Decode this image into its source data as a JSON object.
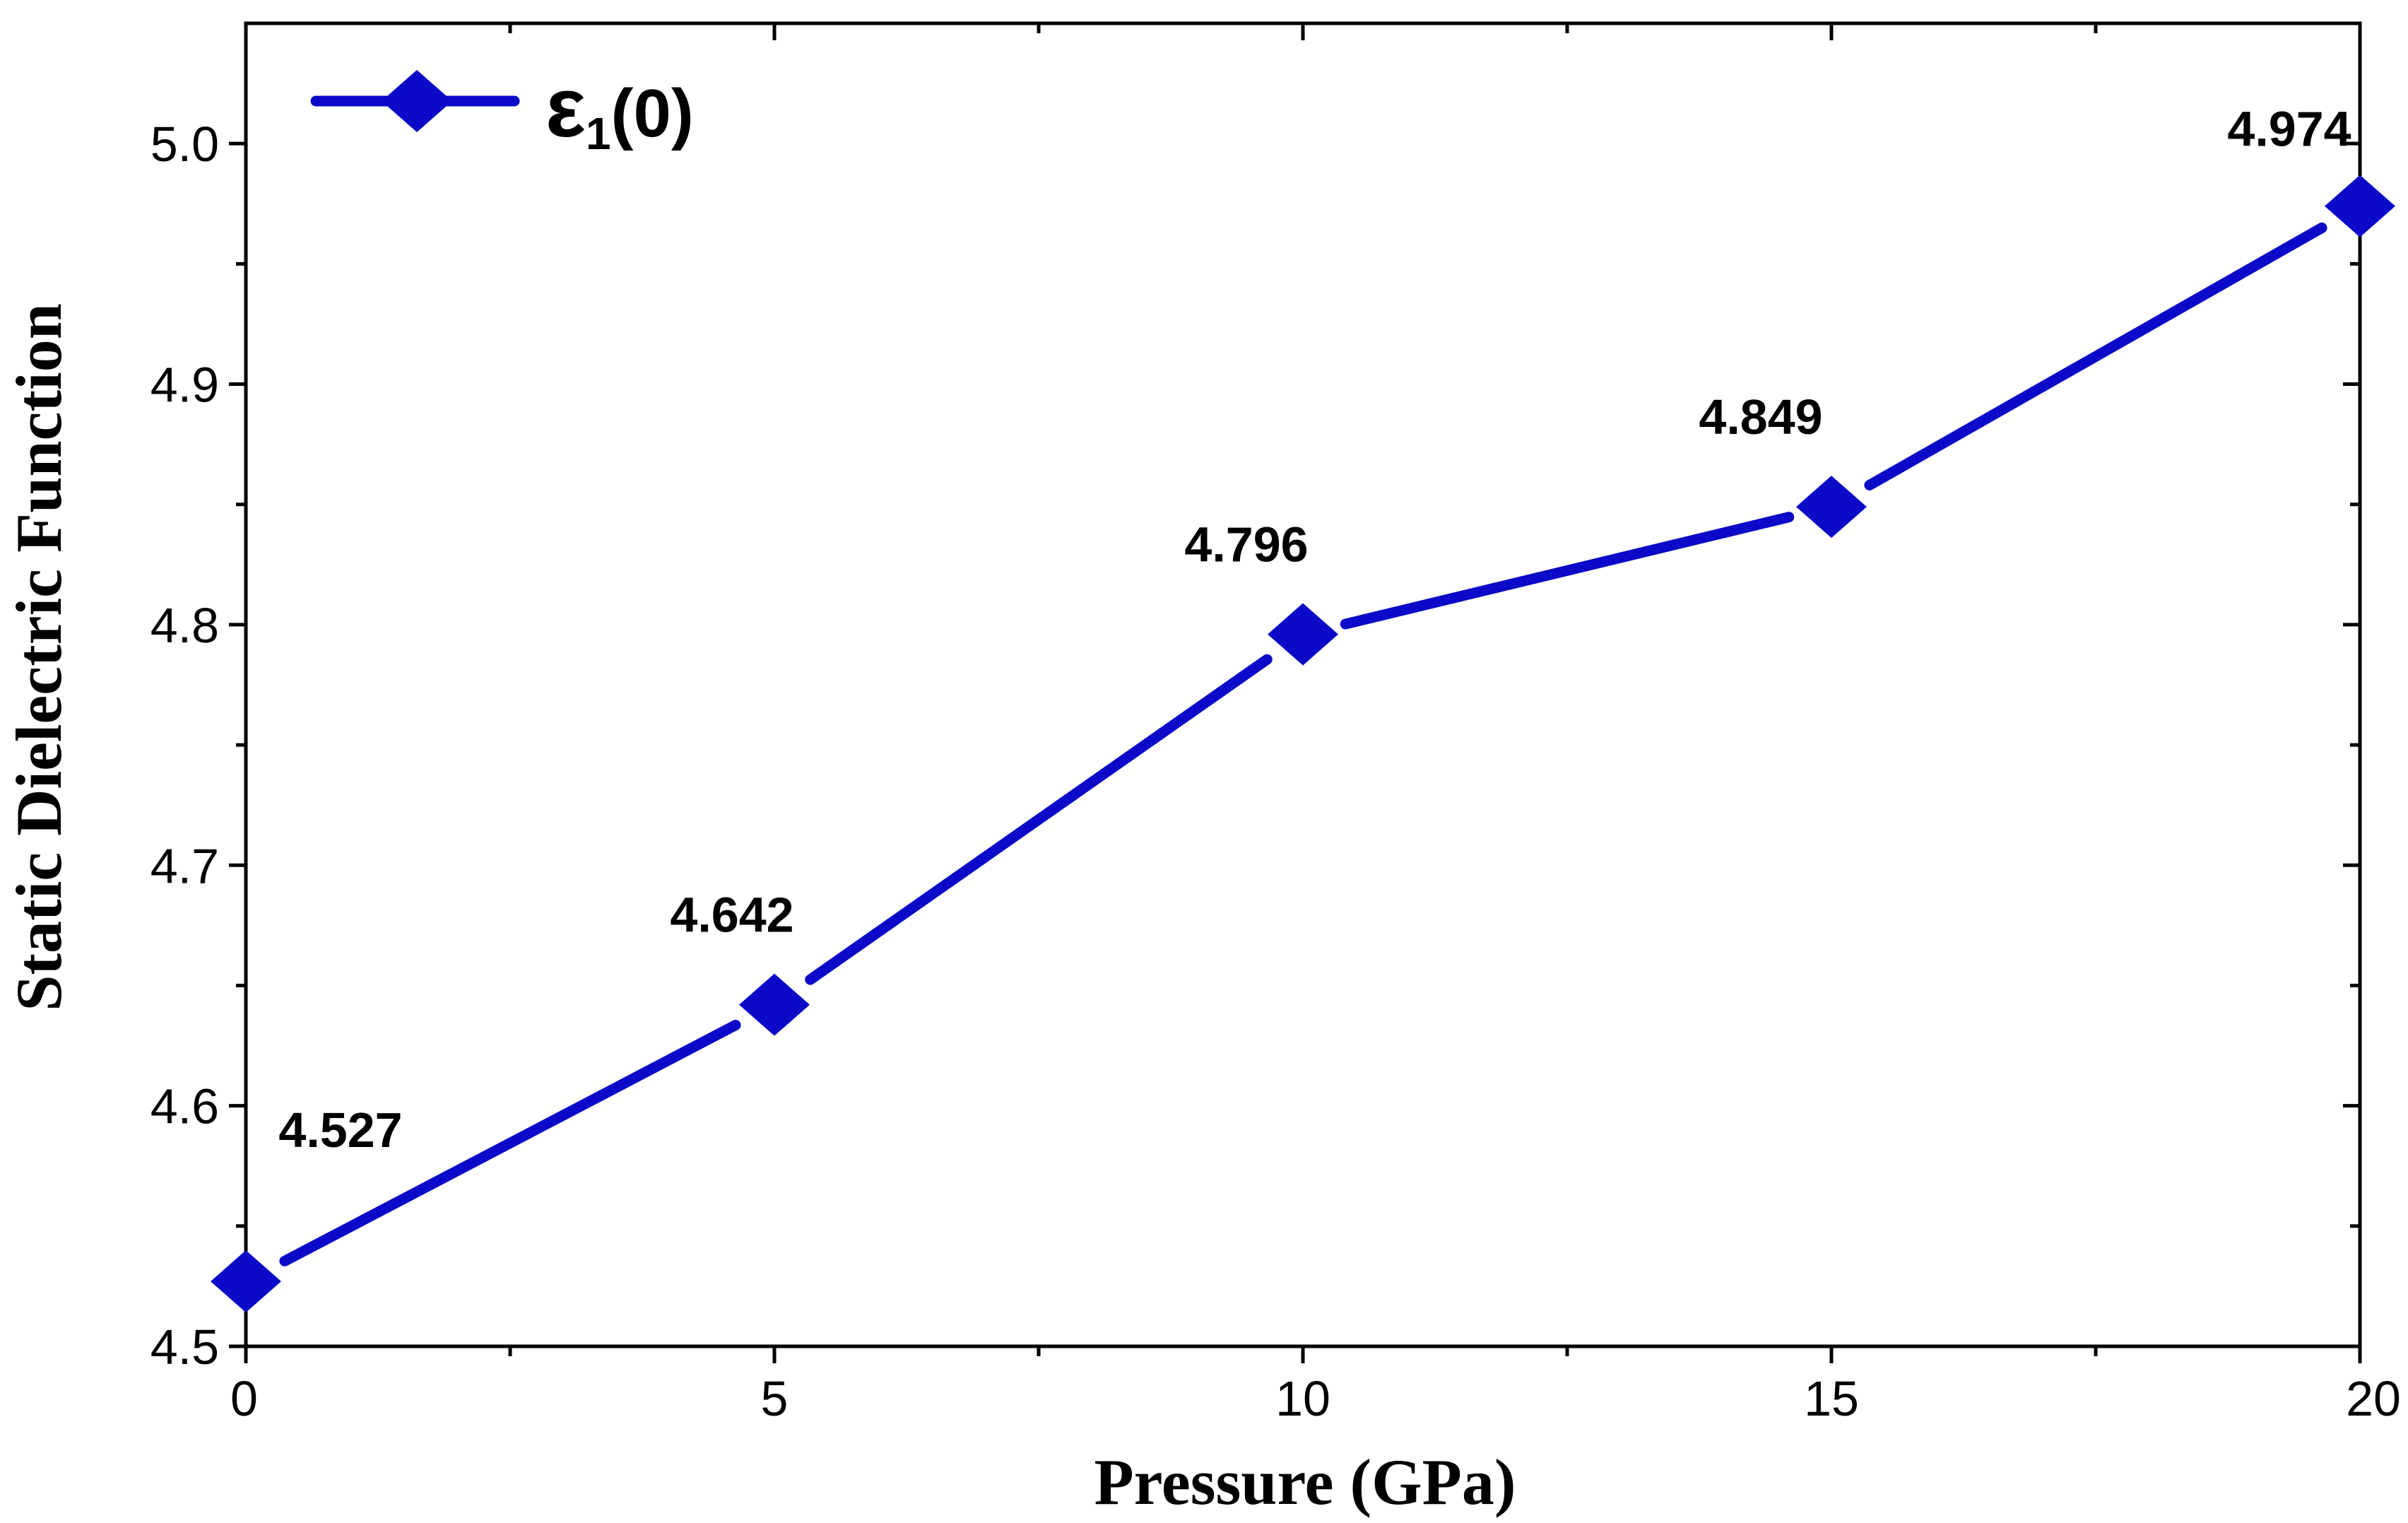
{
  "chart_data": {
    "type": "line",
    "title": "",
    "xlabel": "Pressure (GPa)",
    "ylabel": "Static Dielectric Function",
    "xlim": [
      0,
      20
    ],
    "ylim": [
      4.5,
      5.05
    ],
    "x_ticks": [
      0,
      5,
      10,
      15,
      20
    ],
    "x_tick_labels": [
      "0",
      "5",
      "10",
      "15",
      "20"
    ],
    "y_ticks": [
      4.5,
      4.6,
      4.7,
      4.8,
      4.9,
      5.0
    ],
    "y_tick_labels": [
      "4.5",
      "4.6",
      "4.7",
      "4.8",
      "4.9",
      "5.0"
    ],
    "x_minor_ticks": [
      2.5,
      7.5,
      12.5,
      17.5
    ],
    "y_minor_ticks": [
      4.55,
      4.65,
      4.75,
      4.85,
      4.95
    ],
    "grid": false,
    "legend_position": "top-left",
    "series": [
      {
        "name": "ε1(0)",
        "legend_main": "ε",
        "legend_sub": "1",
        "legend_suffix": "(0)",
        "color": "#0A0AC8",
        "marker": "diamond",
        "x": [
          0,
          5,
          10,
          15,
          20
        ],
        "values": [
          4.527,
          4.642,
          4.796,
          4.849,
          4.974
        ],
        "data_labels": [
          "4.527",
          "4.642",
          "4.796",
          "4.849",
          "4.974"
        ]
      }
    ]
  }
}
